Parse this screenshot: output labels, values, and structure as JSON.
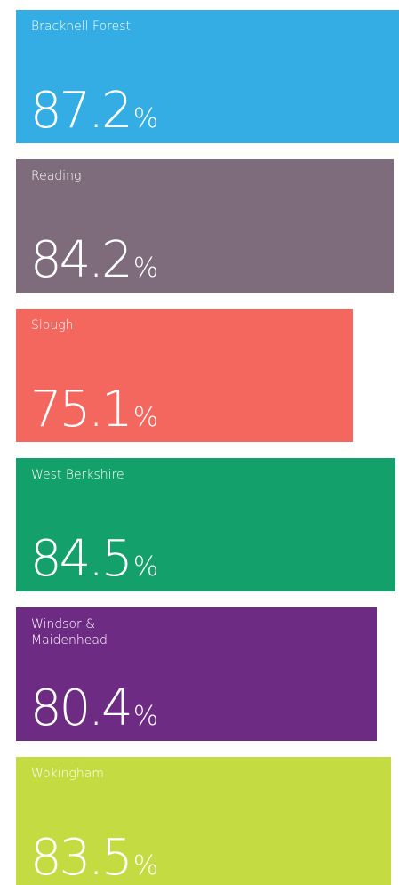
{
  "chart_data": {
    "type": "bar",
    "categories": [
      "Bracknell Forest",
      "Reading",
      "Slough",
      "West Berkshire",
      "Windsor & Maidenhead",
      "Wokingham"
    ],
    "values": [
      87.2,
      84.2,
      75.1,
      84.5,
      80.4,
      83.5
    ],
    "unit": "%",
    "colors": [
      "#33ade3",
      "#7e6c7d",
      "#f4675f",
      "#14a06b",
      "#6d2b83",
      "#c4db42"
    ]
  }
}
